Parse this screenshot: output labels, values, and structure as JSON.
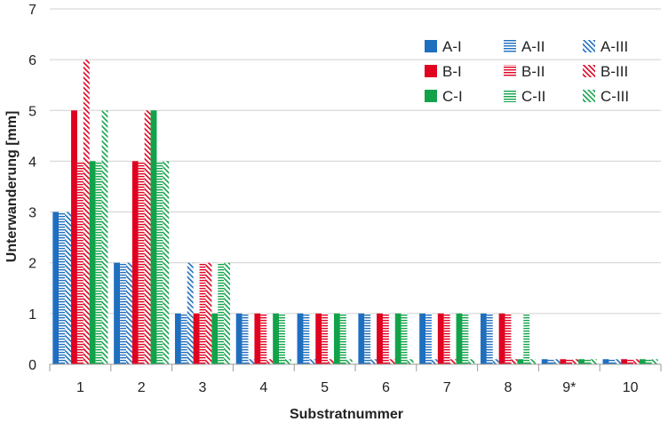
{
  "chart_data": {
    "type": "bar",
    "title": "",
    "xlabel": "Substratnummer",
    "ylabel": "Unterwanderung [mm]",
    "ylim": [
      0,
      7
    ],
    "yticks": [
      0,
      1,
      2,
      3,
      4,
      5,
      6,
      7
    ],
    "grid": "horizontal",
    "legend_position": "top-right",
    "categories": [
      "1",
      "2",
      "3",
      "4",
      "5",
      "6",
      "7",
      "8",
      "9*",
      "10"
    ],
    "series": [
      {
        "name": "A-I",
        "color": "#1f6fbf",
        "pattern": "solid",
        "values": [
          3,
          2,
          1,
          1,
          1,
          1,
          1,
          1,
          0.1,
          0.1
        ]
      },
      {
        "name": "A-II",
        "color": "#1f6fbf",
        "pattern": "horizontal",
        "values": [
          3,
          2,
          1,
          1,
          1,
          1,
          1,
          1,
          0.1,
          0.1
        ]
      },
      {
        "name": "A-III",
        "color": "#1f6fbf",
        "pattern": "diagonal",
        "values": [
          3,
          2,
          2,
          0.1,
          0.1,
          0.1,
          0.1,
          0.1,
          0.1,
          0.1
        ]
      },
      {
        "name": "B-I",
        "color": "#e00020",
        "pattern": "solid",
        "values": [
          5,
          4,
          1,
          1,
          1,
          1,
          1,
          1,
          0.1,
          0.1
        ]
      },
      {
        "name": "B-II",
        "color": "#e00020",
        "pattern": "horizontal",
        "values": [
          4,
          4,
          2,
          1,
          1,
          1,
          1,
          1,
          0.1,
          0.1
        ]
      },
      {
        "name": "B-III",
        "color": "#e00020",
        "pattern": "diagonal",
        "values": [
          6,
          5,
          2,
          0.1,
          0.1,
          0.1,
          0.1,
          0.1,
          0.1,
          0.1
        ]
      },
      {
        "name": "C-I",
        "color": "#12a34a",
        "pattern": "solid",
        "values": [
          4,
          5,
          1,
          1,
          1,
          1,
          1,
          0.1,
          0.1,
          0.1
        ]
      },
      {
        "name": "C-II",
        "color": "#12a34a",
        "pattern": "horizontal",
        "values": [
          4,
          4,
          2,
          1,
          1,
          1,
          1,
          1,
          0.1,
          0.1
        ]
      },
      {
        "name": "C-III",
        "color": "#12a34a",
        "pattern": "diagonal",
        "values": [
          5,
          4,
          2,
          0.1,
          0.1,
          0.1,
          0.1,
          0.1,
          0.1,
          0.1
        ]
      }
    ]
  }
}
